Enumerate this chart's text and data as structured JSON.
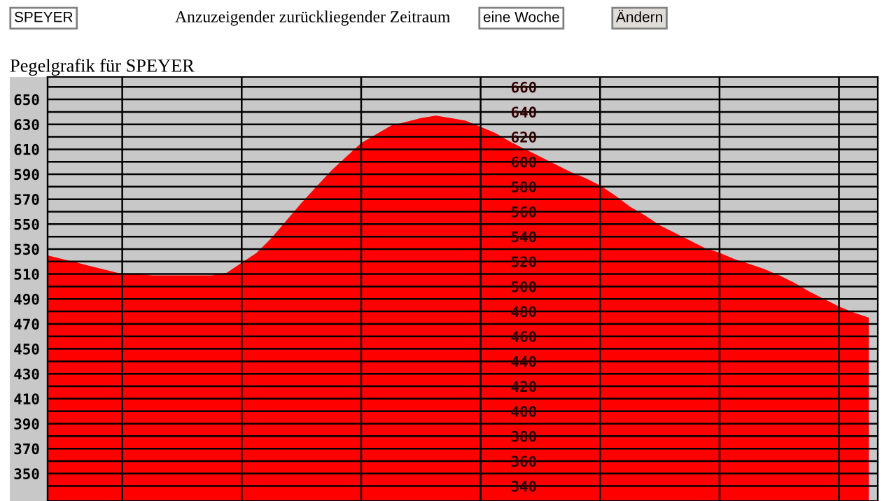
{
  "chart_data": {
    "type": "area",
    "title": "Pegelgrafik für SPEYER",
    "annotations": [
      "SPEYER",
      "Anzuzeigender zurückliegender Zeitraum",
      "eine Woche",
      "Ändern"
    ],
    "categories": [
      null,
      null,
      null,
      null,
      null,
      null,
      null,
      null,
      null,
      null,
      null,
      null,
      null,
      null,
      null,
      null,
      null,
      null,
      null,
      null,
      null,
      null,
      null,
      null,
      null,
      null,
      null,
      null,
      null,
      null,
      null,
      null,
      null,
      null,
      null,
      null,
      null,
      null,
      null,
      null,
      null,
      null,
      null,
      null,
      null,
      null,
      null,
      null,
      null,
      null,
      null,
      null,
      null,
      null,
      null,
      null
    ],
    "series": [
      {
        "color": "#ff0000",
        "values": [
          525,
          522,
          519,
          516,
          513,
          510,
          510,
          509,
          509,
          509,
          509,
          509,
          511,
          519,
          527,
          539,
          553,
          567,
          580,
          593,
          604,
          615,
          622,
          629,
          632,
          635,
          637,
          635,
          633,
          628,
          623,
          616,
          610,
          604,
          598,
          592,
          587,
          581,
          573,
          564,
          557,
          549,
          543,
          537,
          531,
          527,
          522,
          518,
          514,
          509,
          503,
          496,
          490,
          484,
          479,
          475
        ]
      }
    ],
    "ylim": [
      328,
      668
    ],
    "yticks": [
      350,
      370,
      390,
      410,
      430,
      450,
      470,
      490,
      510,
      530,
      550,
      570,
      590,
      610,
      630,
      650
    ],
    "y2lim": [
      328,
      668
    ],
    "y2ticks": [
      340,
      360,
      380,
      400,
      420,
      440,
      460,
      480,
      500,
      520,
      540,
      560,
      580,
      600,
      620,
      640,
      660
    ],
    "tick_labels": "y",
    "grid": true,
    "legend": false
  }
}
